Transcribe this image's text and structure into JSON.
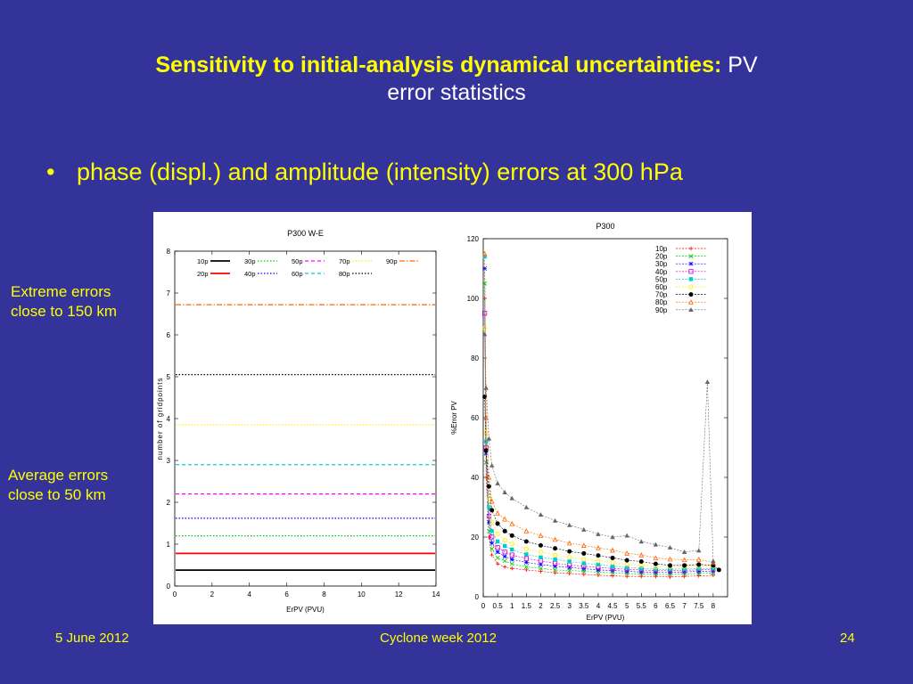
{
  "slide": {
    "title_bold": "Sensitivity to initial-analysis dynamical uncertainties:",
    "title_rest_line1": "PV",
    "title_rest_line2": "error statistics",
    "bullet": "phase (displ.) and amplitude (intensity) errors at 300 hPa",
    "note_extreme_line1": "Extreme errors",
    "note_extreme_line2": "close to 150 km",
    "note_average_line1": "Average errors",
    "note_average_line2": "close to 50 km",
    "footer_date": "5 June 2012",
    "footer_event": "Cyclone week 2012",
    "footer_page": "24"
  },
  "chart_data": [
    {
      "type": "line",
      "title": "P300 W-E",
      "xlabel": "ErPV (PVU)",
      "ylabel": "number of gridpoints",
      "xlim": [
        0,
        14
      ],
      "ylim": [
        0,
        8
      ],
      "xticks": [
        0,
        2,
        4,
        6,
        8,
        10,
        12,
        14
      ],
      "yticks": [
        0,
        1,
        2,
        3,
        4,
        5,
        6,
        7,
        8
      ],
      "legend": "top",
      "series": [
        {
          "name": "10p",
          "value": 0.38,
          "color": "#000000",
          "style": "solid"
        },
        {
          "name": "20p",
          "value": 0.78,
          "color": "#ff0000",
          "style": "solid"
        },
        {
          "name": "30p",
          "value": 1.2,
          "color": "#00cc00",
          "style": "dotted"
        },
        {
          "name": "40p",
          "value": 1.62,
          "color": "#0000ff",
          "style": "dotted"
        },
        {
          "name": "50p",
          "value": 2.2,
          "color": "#ff00ff",
          "style": "dashed"
        },
        {
          "name": "60p",
          "value": 2.9,
          "color": "#00cccc",
          "style": "dashed"
        },
        {
          "name": "70p",
          "value": 3.85,
          "color": "#ffee00",
          "style": "dotted"
        },
        {
          "name": "80p",
          "value": 5.05,
          "color": "#000000",
          "style": "dotted"
        },
        {
          "name": "90p",
          "value": 6.72,
          "color": "#ff6600",
          "style": "dashdot"
        }
      ]
    },
    {
      "type": "line",
      "title": "P300",
      "xlabel": "ErPV (PVU)",
      "ylabel": "%Error PV",
      "xlim": [
        0,
        8.5
      ],
      "ylim": [
        0,
        120
      ],
      "xticks": [
        0,
        0.5,
        1,
        1.5,
        2,
        2.5,
        3,
        3.5,
        4,
        4.5,
        5,
        5.5,
        6,
        6.5,
        7,
        7.5,
        8
      ],
      "yticks": [
        0,
        20,
        40,
        60,
        80,
        100,
        120
      ],
      "legend": "top-right",
      "series": [
        {
          "name": "10p",
          "color": "#ff0000",
          "marker": "+",
          "x": [
            0.05,
            0.1,
            0.2,
            0.3,
            0.5,
            0.75,
            1,
            1.5,
            2,
            2.5,
            3,
            3.5,
            4,
            4.5,
            5,
            5.5,
            6,
            6.5,
            7,
            7.5,
            8
          ],
          "values": [
            100,
            40,
            20,
            14,
            11,
            10,
            9.5,
            9,
            8.5,
            8,
            7.8,
            7.5,
            7.2,
            7,
            6.8,
            6.8,
            6.8,
            6.6,
            6.8,
            7,
            7.2
          ]
        },
        {
          "name": "20p",
          "color": "#00cc00",
          "marker": "x",
          "x": [
            0.05,
            0.1,
            0.2,
            0.3,
            0.5,
            0.75,
            1,
            1.5,
            2,
            2.5,
            3,
            3.5,
            4,
            4.5,
            5,
            5.5,
            6,
            6.5,
            7,
            7.5,
            8
          ],
          "values": [
            105,
            45,
            22,
            16,
            13,
            12,
            11,
            10,
            9.5,
            9,
            8.8,
            8.5,
            8.2,
            8,
            7.8,
            7.6,
            7.5,
            7.5,
            7.6,
            7.8,
            8
          ]
        },
        {
          "name": "30p",
          "color": "#0000ff",
          "marker": "*",
          "x": [
            0.05,
            0.1,
            0.2,
            0.3,
            0.5,
            0.75,
            1,
            1.5,
            2,
            2.5,
            3,
            3.5,
            4,
            4.5,
            5,
            5.5,
            6,
            6.5,
            7,
            7.5,
            8
          ],
          "values": [
            110,
            48,
            25,
            18,
            15,
            13.5,
            12.5,
            11.5,
            10.8,
            10.2,
            9.8,
            9.4,
            9,
            8.8,
            8.5,
            8.3,
            8.2,
            8.2,
            8.3,
            8.5,
            8.6
          ]
        },
        {
          "name": "40p",
          "color": "#cc00cc",
          "marker": "square",
          "x": [
            0.05,
            0.1,
            0.2,
            0.3,
            0.5,
            0.75,
            1,
            1.5,
            2,
            2.5,
            3,
            3.5,
            4,
            4.5,
            5,
            5.5,
            6,
            6.5,
            7,
            7.5,
            8
          ],
          "values": [
            95,
            50,
            27,
            20,
            16.5,
            15,
            14,
            12.8,
            12,
            11.2,
            10.6,
            10.2,
            9.8,
            9.5,
            9.2,
            9,
            8.8,
            8.8,
            8.9,
            9,
            9.2
          ]
        },
        {
          "name": "50p",
          "color": "#00cccc",
          "marker": "filled-square",
          "x": [
            0.05,
            0.1,
            0.2,
            0.3,
            0.5,
            0.75,
            1,
            1.5,
            2,
            2.5,
            3,
            3.5,
            4,
            4.5,
            5,
            5.5,
            6,
            6.5,
            7,
            7.5,
            8
          ],
          "values": [
            114,
            52,
            30,
            22,
            18.5,
            17,
            15.8,
            14.2,
            13.2,
            12.5,
            11.8,
            11.2,
            10.8,
            10.2,
            9.8,
            9.5,
            9.2,
            9.2,
            9.3,
            9.4,
            9.5
          ]
        },
        {
          "name": "60p",
          "color": "#ffee00",
          "marker": "circle",
          "x": [
            0.05,
            0.1,
            0.2,
            0.3,
            0.5,
            0.75,
            1,
            1.5,
            2,
            2.5,
            3,
            3.5,
            4,
            4.5,
            5,
            5.5,
            6,
            6.5,
            7,
            7.5,
            8
          ],
          "values": [
            90,
            55,
            33,
            25,
            21,
            19,
            17.8,
            16,
            15,
            14,
            13.2,
            12.6,
            12,
            11.4,
            10.8,
            10.4,
            10,
            10,
            10.1,
            10.2,
            10.3
          ]
        },
        {
          "name": "70p",
          "color": "#000000",
          "marker": "filled-circle",
          "x": [
            0.05,
            0.1,
            0.2,
            0.3,
            0.5,
            0.75,
            1,
            1.5,
            2,
            2.5,
            3,
            3.5,
            4,
            4.5,
            5,
            5.5,
            6,
            6.5,
            7,
            7.5,
            8,
            8.2
          ],
          "values": [
            67,
            49,
            37,
            29,
            24.5,
            22,
            20.5,
            18.5,
            17.2,
            16.2,
            15.2,
            14.5,
            13.8,
            13,
            12.2,
            11.8,
            11,
            10.5,
            10.5,
            10.8,
            10.5,
            9
          ]
        },
        {
          "name": "80p",
          "color": "#ff6600",
          "marker": "triangle",
          "x": [
            0.05,
            0.1,
            0.2,
            0.3,
            0.5,
            0.75,
            1,
            1.5,
            2,
            2.5,
            3,
            3.5,
            4,
            4.5,
            5,
            5.5,
            6,
            6.5,
            7,
            7.5,
            8
          ],
          "values": [
            115,
            60,
            40,
            32,
            28,
            26,
            24.5,
            22,
            20.5,
            19.2,
            18,
            17.2,
            16.4,
            15.6,
            14.6,
            14,
            13,
            12.6,
            12.4,
            12.5,
            11.5
          ]
        },
        {
          "name": "90p",
          "color": "#666666",
          "marker": "filled-triangle",
          "x": [
            0.05,
            0.1,
            0.2,
            0.3,
            0.5,
            0.75,
            1,
            1.5,
            2,
            2.5,
            3,
            3.5,
            4,
            4.5,
            5,
            5.5,
            6,
            6.5,
            7,
            7.5,
            7.8,
            8
          ],
          "values": [
            88,
            70,
            53,
            44,
            38,
            35,
            33,
            30,
            27.5,
            25.5,
            24,
            22.5,
            21,
            20,
            20.5,
            18.5,
            17.5,
            16.5,
            15,
            15.5,
            72,
            12
          ]
        }
      ]
    }
  ]
}
